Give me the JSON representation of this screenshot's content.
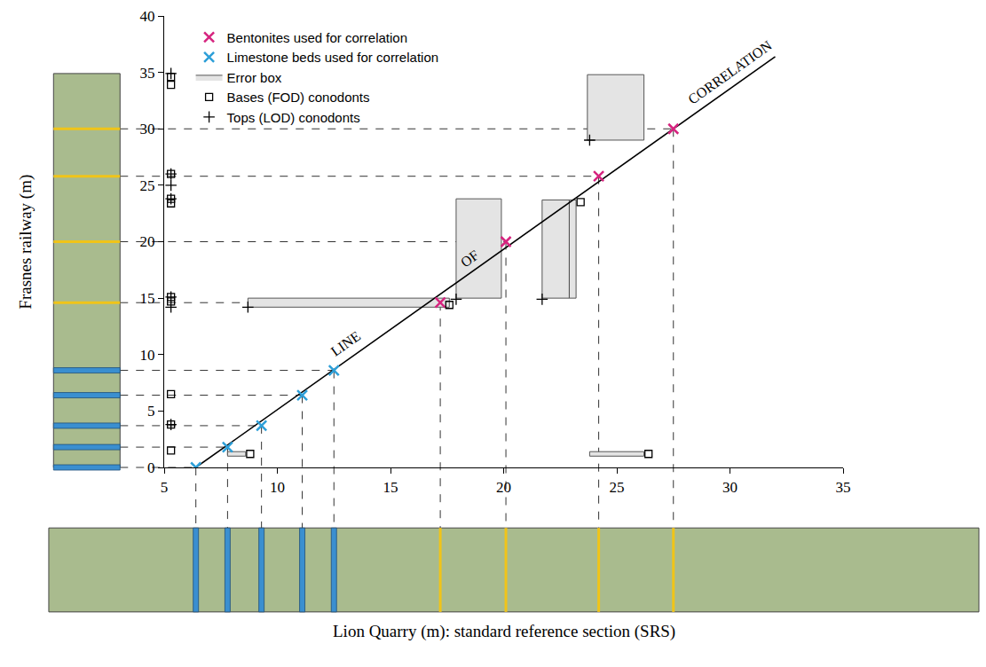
{
  "chart_data": {
    "type": "scatter",
    "xlabel": "Lion Quarry (m): standard reference section (SRS)",
    "ylabel": "Frasnes railway (m)",
    "xlim": [
      5,
      35
    ],
    "xticks": [
      5,
      10,
      15,
      20,
      25,
      30,
      35
    ],
    "ylim": [
      0,
      40
    ],
    "yticks": [
      0,
      5,
      10,
      15,
      20,
      25,
      30,
      35,
      40
    ],
    "grid": false,
    "legend": "top left",
    "series": [
      {
        "name": "Bentonites used for correlation",
        "type": "scatter",
        "color": "#d6247f",
        "marker": "x",
        "x": [
          17.2,
          20.1,
          24.2,
          27.5
        ],
        "values": [
          14.6,
          20,
          25.8,
          30
        ]
      },
      {
        "name": "Limestone beds used for correlation",
        "type": "scatter",
        "color": "#2d9fd8",
        "marker": "x",
        "x": [
          6.4,
          7.8,
          9.3,
          11.1,
          12.5
        ],
        "values": [
          0,
          1.8,
          3.7,
          6.4,
          8.6
        ]
      },
      {
        "name": "Error box",
        "type": "rect",
        "color": "#e4e4e4",
        "boxes": [
          {
            "x": [
              7.8,
              8.6
            ],
            "y": [
              1.0,
              1.4
            ]
          },
          {
            "x": [
              8.7,
              17.6
            ],
            "y": [
              14.2,
              15.0
            ]
          },
          {
            "x": [
              17.9,
              19.9
            ],
            "y": [
              15.0,
              23.8
            ]
          },
          {
            "x": [
              21.7,
              22.9
            ],
            "y": [
              15.0,
              23.7
            ]
          },
          {
            "x": [
              22.9,
              23.2
            ],
            "y": [
              15.0,
              23.7
            ]
          },
          {
            "x": [
              23.7,
              26.2
            ],
            "y": [
              29.0,
              34.8
            ]
          },
          {
            "x": [
              23.8,
              26.2
            ],
            "y": [
              1.0,
              1.4
            ]
          }
        ]
      },
      {
        "name": "Bases (FOD) conodonts",
        "type": "scatter",
        "color": "#000000",
        "marker": "square-open",
        "x": [
          5.3,
          5.3,
          5.3,
          5.3,
          5.3,
          5.3,
          5.3,
          5.3,
          5.3,
          5.3,
          8.8,
          17.6,
          23.4,
          26.4
        ],
        "values": [
          34.6,
          33.9,
          26.0,
          23.8,
          23.4,
          15.1,
          14.7,
          6.5,
          3.8,
          1.5,
          1.2,
          14.4,
          23.5,
          1.2
        ]
      },
      {
        "name": "Tops (LOD) conodonts",
        "type": "scatter",
        "color": "#000000",
        "marker": "cross",
        "x": [
          5.3,
          5.3,
          5.3,
          5.3,
          5.3,
          5.3,
          5.3,
          8.7,
          17.9,
          21.7,
          23.8
        ],
        "values": [
          34.9,
          26.0,
          25.0,
          23.8,
          15.1,
          14.2,
          3.8,
          14.2,
          14.9,
          14.9,
          29.0
        ]
      },
      {
        "type": "line",
        "color": "#000000",
        "line_style": "solid",
        "x": [
          6.4,
          32.0
        ],
        "values": [
          0,
          36.4
        ]
      }
    ],
    "annotations": [
      {
        "text": "LINE",
        "x": 13.0,
        "y": 11.0
      },
      {
        "text": "OF",
        "x": 18.5,
        "y": 18.5
      },
      {
        "text": "CORRELATION",
        "x": 30.0,
        "y": 35.0
      }
    ]
  }
}
